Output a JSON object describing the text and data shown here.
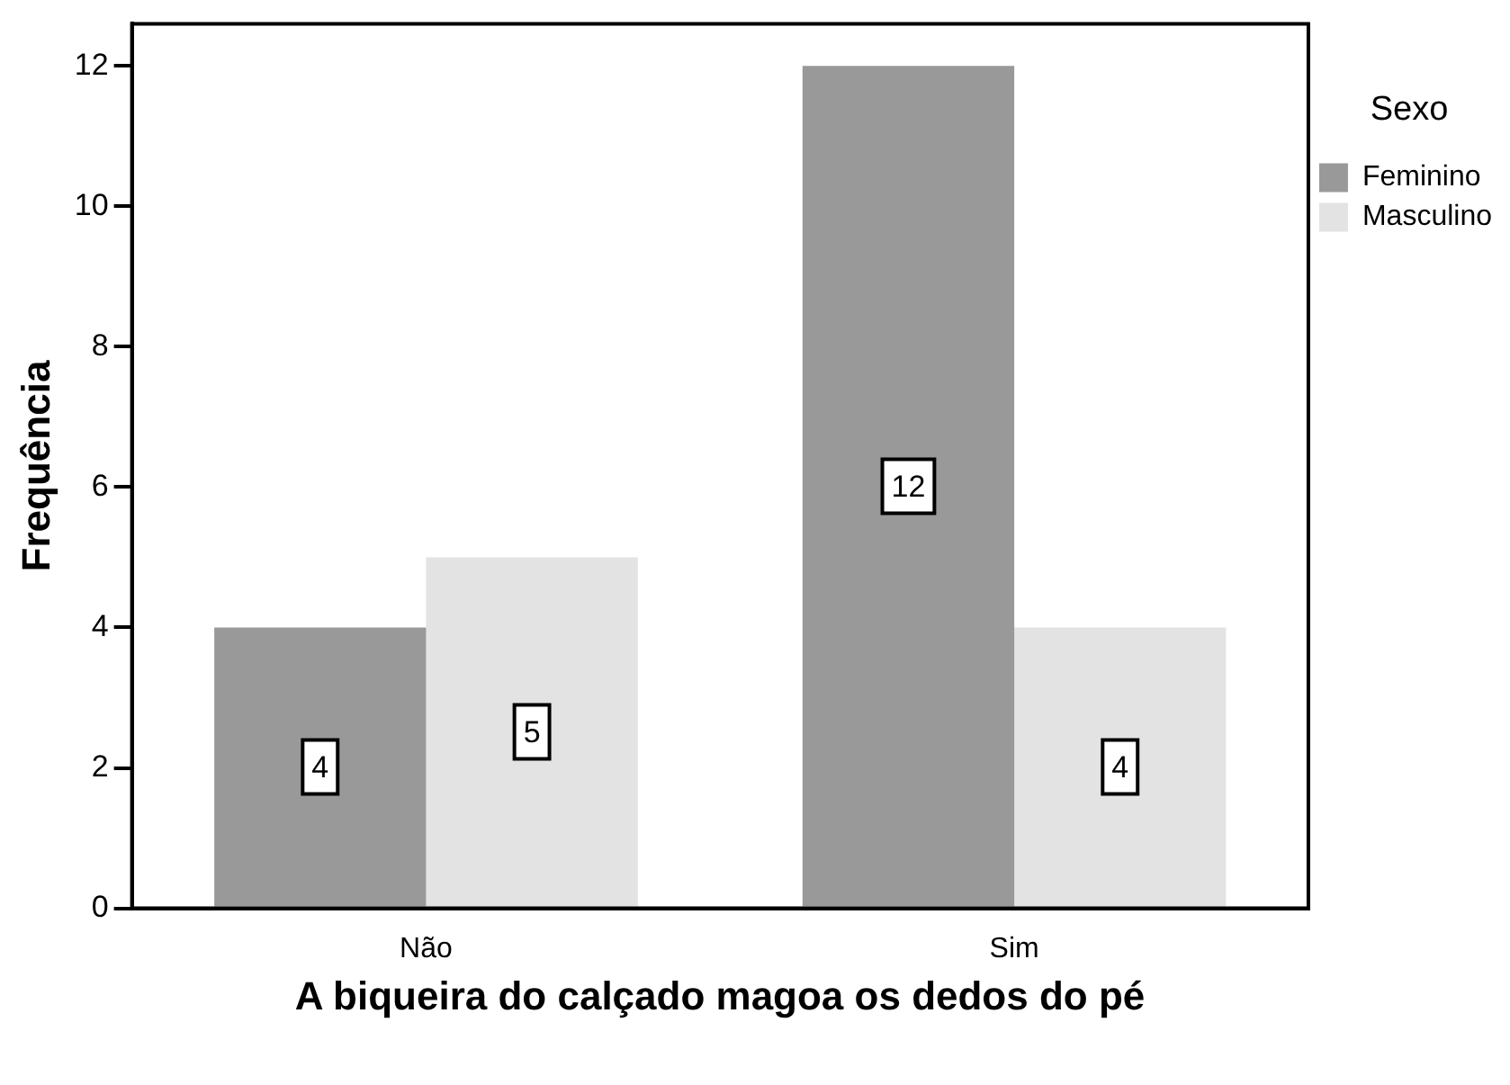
{
  "chart_data": {
    "type": "bar",
    "xlabel": "A biqueira do calçado magoa os dedos do pé",
    "ylabel": "Frequência",
    "legend_title": "Sexo",
    "categories": [
      "Não",
      "Sim"
    ],
    "series": [
      {
        "name": "Feminino",
        "color": "#999999",
        "values": [
          4,
          12
        ]
      },
      {
        "name": "Masculino",
        "color": "#e3e3e3",
        "values": [
          5,
          4
        ]
      }
    ],
    "ylim": [
      0,
      12.6
    ],
    "yticks": [
      0,
      2,
      4,
      6,
      8,
      10,
      12
    ],
    "grid": false,
    "legend": "top right",
    "data_labels": true
  }
}
